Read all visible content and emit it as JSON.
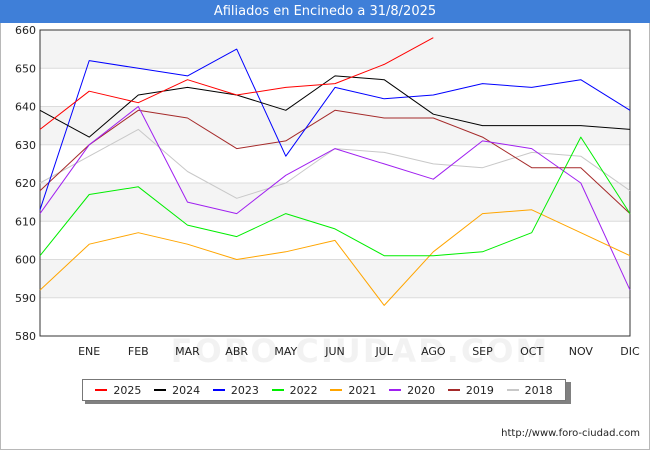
{
  "header": {
    "title": "Afiliados en Encinedo a 31/8/2025"
  },
  "footer": {
    "source": "http://www.foro-ciudad.com"
  },
  "watermark": "FORO-CIUDAD.COM",
  "chart_data": {
    "type": "line",
    "title": "Afiliados en Encinedo a 31/8/2025",
    "xlabel": "",
    "ylabel": "",
    "categories": [
      "",
      "ENE",
      "FEB",
      "MAR",
      "ABR",
      "MAY",
      "JUN",
      "JUL",
      "AGO",
      "SEP",
      "OCT",
      "NOV",
      "DIC"
    ],
    "ylim": [
      580,
      660
    ],
    "yticks": [
      580,
      590,
      600,
      610,
      620,
      630,
      640,
      650,
      660
    ],
    "grid": true,
    "legend_position": "bottom",
    "series": [
      {
        "name": "2025",
        "color": "#ff0000",
        "values": [
          634,
          644,
          641,
          647,
          643,
          645,
          646,
          651,
          658,
          null,
          null,
          null,
          null
        ]
      },
      {
        "name": "2024",
        "color": "#000000",
        "values": [
          639,
          632,
          643,
          645,
          643,
          639,
          648,
          647,
          638,
          635,
          635,
          635,
          634
        ]
      },
      {
        "name": "2023",
        "color": "#0000ff",
        "values": [
          613,
          652,
          650,
          648,
          655,
          627,
          645,
          642,
          643,
          646,
          645,
          647,
          639
        ]
      },
      {
        "name": "2022",
        "color": "#00ee00",
        "values": [
          601,
          617,
          619,
          609,
          606,
          612,
          608,
          601,
          601,
          602,
          607,
          632,
          612
        ]
      },
      {
        "name": "2021",
        "color": "#ffa500",
        "values": [
          592,
          604,
          607,
          604,
          600,
          602,
          605,
          588,
          602,
          612,
          613,
          607,
          601
        ]
      },
      {
        "name": "2020",
        "color": "#a020f0",
        "values": [
          612,
          630,
          640,
          615,
          612,
          622,
          629,
          625,
          621,
          631,
          629,
          620,
          592
        ]
      },
      {
        "name": "2019",
        "color": "#a52a2a",
        "values": [
          618,
          630,
          639,
          637,
          629,
          631,
          639,
          637,
          637,
          632,
          624,
          624,
          612
        ]
      },
      {
        "name": "2018",
        "color": "#c8c8c8",
        "values": [
          620,
          627,
          634,
          623,
          616,
          620,
          629,
          628,
          625,
          624,
          628,
          627,
          618
        ]
      }
    ]
  }
}
